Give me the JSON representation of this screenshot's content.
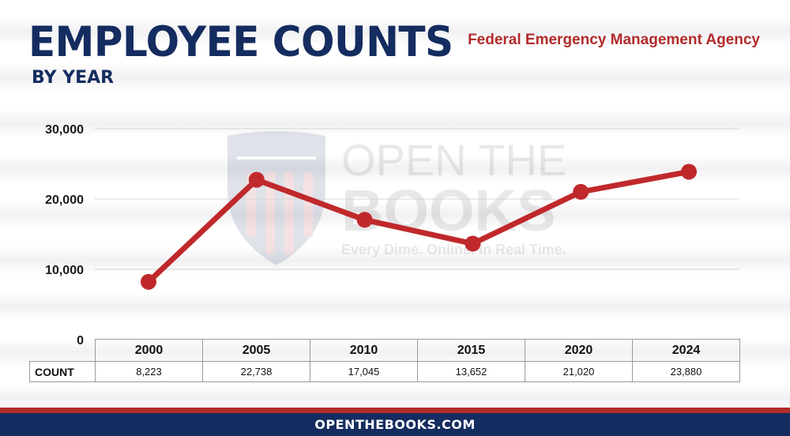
{
  "header": {
    "title": "EMPLOYEE COUNTS",
    "subtitle": "BY YEAR",
    "agency": "Federal Emergency Management Agency"
  },
  "watermark": {
    "brand_line1": "OPEN THE",
    "brand_line2": "BOOKS",
    "tagline": "Every Dime. Online. In Real Time.",
    "icon": "shield-flag-icon"
  },
  "table": {
    "row_label": "COUNT",
    "years": [
      "2000",
      "2005",
      "2010",
      "2015",
      "2020",
      "2024"
    ],
    "counts": [
      "8,223",
      "22,738",
      "17,045",
      "13,652",
      "21,020",
      "23,880"
    ]
  },
  "footer": {
    "url": "OPENTHEBOOKS.COM"
  },
  "colors": {
    "navy": "#142c5f",
    "red": "#b22b2b",
    "line": "#c0292b"
  },
  "chart_data": {
    "type": "line",
    "title": "EMPLOYEE COUNTS BY YEAR",
    "categories": [
      "2000",
      "2005",
      "2010",
      "2015",
      "2020",
      "2024"
    ],
    "values": [
      8223,
      22738,
      17045,
      13652,
      21020,
      23880
    ],
    "ylim": [
      0,
      30000
    ],
    "yticks": [
      0,
      10000,
      20000,
      30000
    ],
    "ytick_labels": [
      "0",
      "10,000",
      "20,000",
      "30,000"
    ],
    "grid": true
  }
}
